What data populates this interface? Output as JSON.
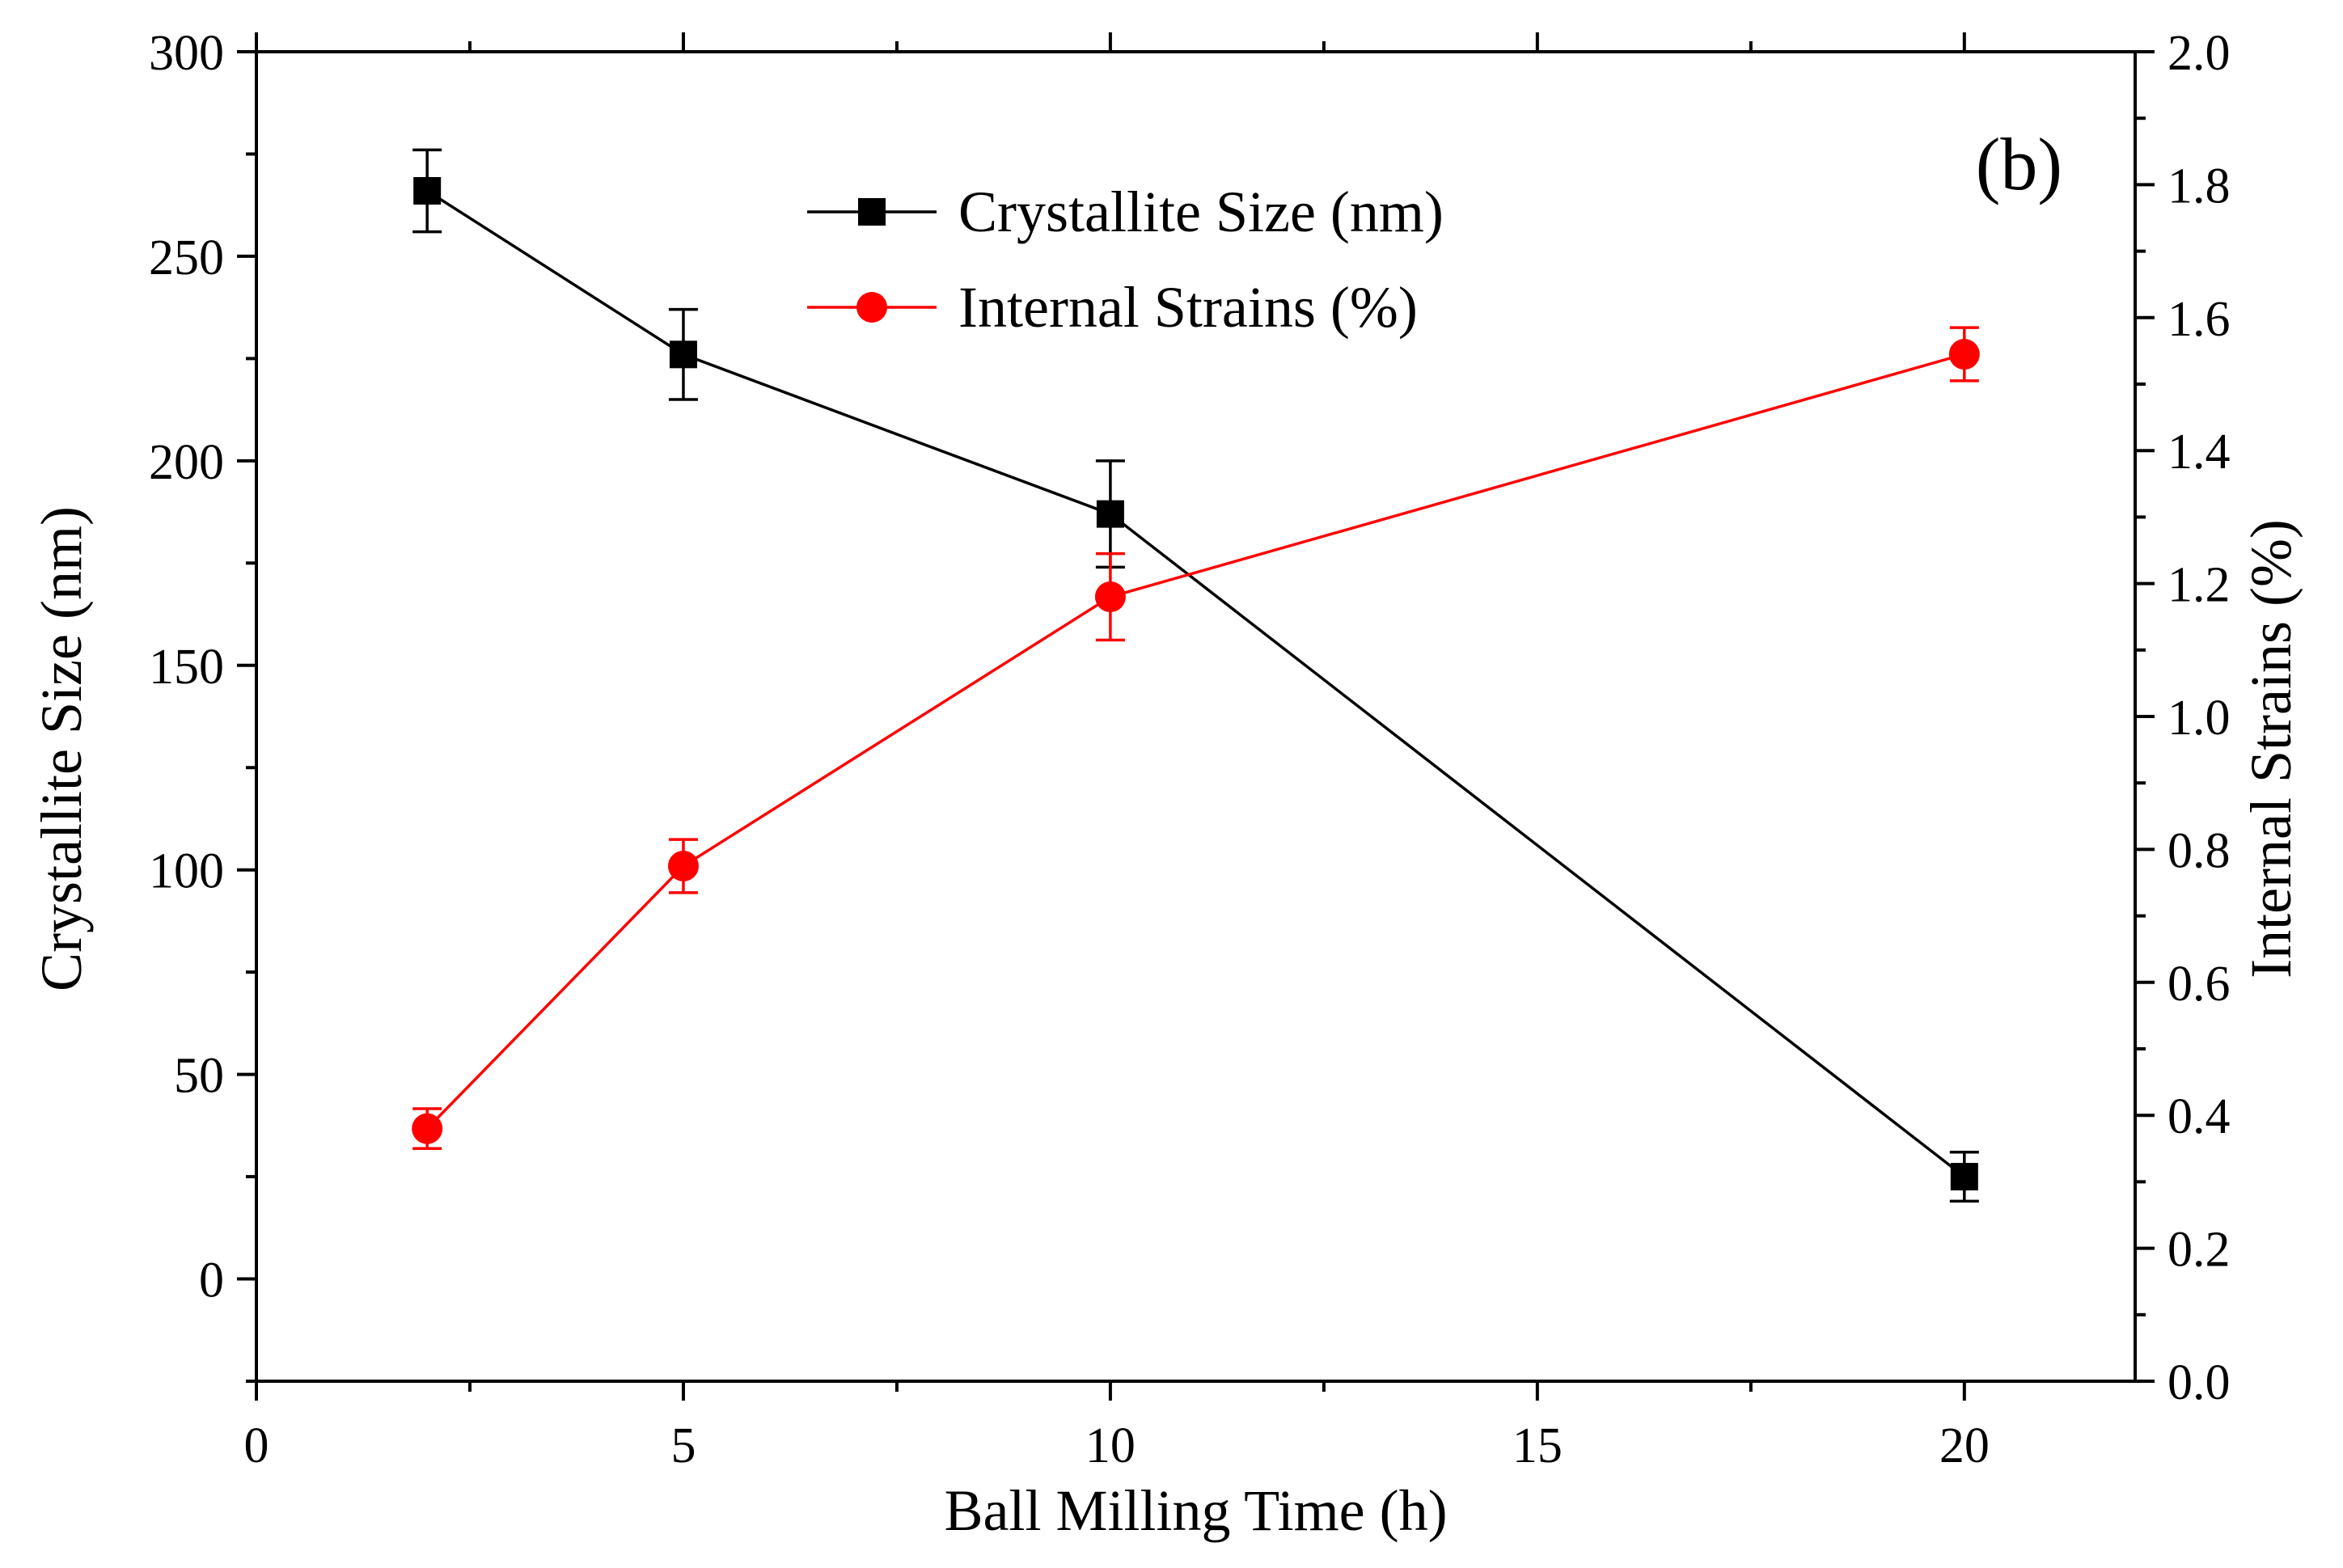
{
  "chart_data": {
    "type": "line",
    "panel_label": "(b)",
    "xlabel": "Ball Milling Time (h)",
    "ylabel_left": "Crystallite Size (nm)",
    "ylabel_right": "Internal Strains (%)",
    "xlim": [
      0,
      22
    ],
    "ylim_left": [
      -25,
      300
    ],
    "ylim_right": [
      0.0,
      2.0
    ],
    "x_ticks": [
      0,
      5,
      10,
      15,
      20
    ],
    "x_tick_labels": [
      "0",
      "5",
      "10",
      "15",
      "20"
    ],
    "y_left_ticks": [
      0,
      50,
      100,
      150,
      200,
      250,
      300
    ],
    "y_left_tick_labels": [
      "0",
      "50",
      "100",
      "150",
      "200",
      "250",
      "300"
    ],
    "y_right_ticks": [
      0.0,
      0.2,
      0.4,
      0.6,
      0.8,
      1.0,
      1.2,
      1.4,
      1.6,
      1.8,
      2.0
    ],
    "y_right_tick_labels": [
      "0.0",
      "0.2",
      "0.4",
      "0.6",
      "0.8",
      "1.0",
      "1.2",
      "1.4",
      "1.6",
      "1.8",
      "2.0"
    ],
    "legend_position": "top-center",
    "grid": false,
    "series": [
      {
        "name": "Crystallite Size (nm)",
        "axis": "left",
        "marker": "square",
        "color": "#000000",
        "x": [
          2,
          5,
          10,
          20
        ],
        "y": [
          266,
          226,
          187,
          25
        ],
        "err": [
          10,
          11,
          13,
          6
        ]
      },
      {
        "name": "Internal Strains (%)",
        "axis": "right",
        "marker": "circle",
        "color": "#ff0000",
        "x": [
          2,
          5,
          10,
          20
        ],
        "y": [
          0.38,
          0.775,
          1.18,
          1.545
        ],
        "err": [
          0.03,
          0.04,
          0.065,
          0.04
        ]
      }
    ]
  }
}
